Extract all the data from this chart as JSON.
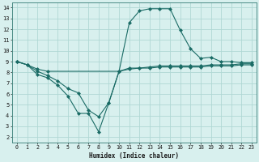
{
  "xlabel": "Humidex (Indice chaleur)",
  "xlim": [
    -0.5,
    23.5
  ],
  "ylim": [
    1.5,
    14.5
  ],
  "xticks": [
    0,
    1,
    2,
    3,
    4,
    5,
    6,
    7,
    8,
    9,
    10,
    11,
    12,
    13,
    14,
    15,
    16,
    17,
    18,
    19,
    20,
    21,
    22,
    23
  ],
  "yticks": [
    2,
    3,
    4,
    5,
    6,
    7,
    8,
    9,
    10,
    11,
    12,
    13,
    14
  ],
  "bg_color": "#d8f0ee",
  "grid_color": "#b0d8d4",
  "line_color": "#1a6b65",
  "line1_x": [
    0,
    1,
    2,
    3,
    10,
    11,
    12,
    13,
    14,
    15,
    16,
    17,
    18,
    19,
    20,
    21,
    22,
    23
  ],
  "line1_y": [
    9.0,
    8.7,
    8.3,
    8.1,
    8.1,
    8.3,
    8.4,
    8.5,
    8.6,
    8.6,
    8.6,
    8.6,
    8.6,
    8.7,
    8.7,
    8.7,
    8.8,
    8.8
  ],
  "line2_x": [
    0,
    1,
    2,
    3,
    4,
    5,
    6,
    7,
    8,
    9,
    10,
    11,
    12,
    13,
    14,
    15,
    16,
    17,
    18,
    19,
    20,
    21,
    22,
    23
  ],
  "line2_y": [
    9.0,
    8.7,
    8.1,
    7.7,
    7.2,
    6.5,
    6.1,
    4.5,
    3.9,
    5.2,
    8.1,
    8.4,
    8.4,
    8.4,
    8.5,
    8.5,
    8.5,
    8.5,
    8.5,
    8.6,
    8.6,
    8.6,
    8.7,
    8.7
  ],
  "line3_x": [
    0,
    1,
    2,
    3,
    4,
    5,
    6,
    7,
    8,
    9,
    10,
    11,
    12,
    13,
    14,
    15,
    16,
    17,
    18,
    19,
    20,
    21,
    22,
    23
  ],
  "line3_y": [
    9.0,
    8.7,
    7.8,
    7.5,
    6.8,
    5.8,
    4.2,
    4.2,
    2.5,
    5.2,
    8.1,
    12.6,
    13.7,
    13.9,
    13.9,
    13.9,
    11.9,
    10.2,
    9.3,
    9.4,
    9.0,
    9.0,
    8.9,
    8.9
  ]
}
